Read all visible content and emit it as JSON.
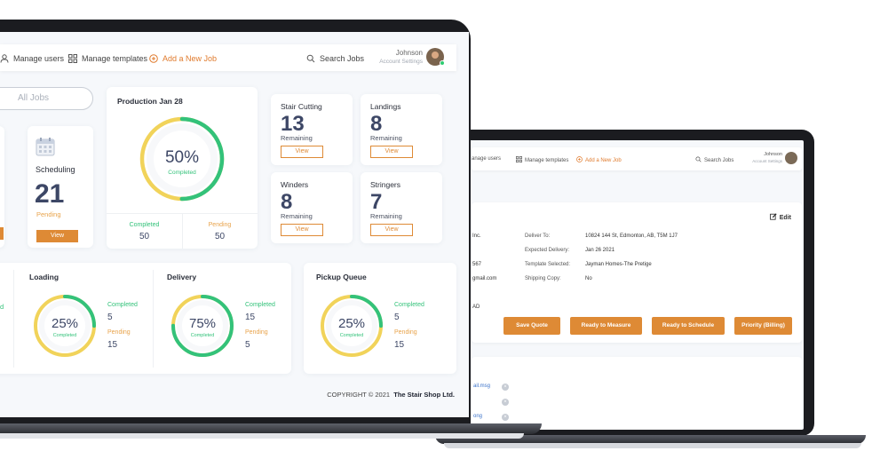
{
  "front": {
    "nav": {
      "manage_users": "Manage users",
      "manage_templates": "Manage templates",
      "add_job": "Add a New Job",
      "search": "Search Jobs",
      "user_name": "Johnson",
      "account_settings": "Account Settings"
    },
    "all_jobs": "All Jobs",
    "scheduling": {
      "title": "Scheduling",
      "count": "21",
      "status": "Pending",
      "view": "View"
    },
    "production": {
      "title": "Production Jan 28",
      "percent": "50%",
      "percent_value": 0.5,
      "percent_label": "Completed",
      "completed_label": "Completed",
      "completed_value": "50",
      "pending_label": "Pending",
      "pending_value": "50"
    },
    "tiles": [
      {
        "title": "Stair Cutting",
        "count": "13",
        "label": "Remaining",
        "view": "View"
      },
      {
        "title": "Landings",
        "count": "8",
        "label": "Remaining",
        "view": "View"
      },
      {
        "title": "Winders",
        "count": "8",
        "label": "Remaining",
        "view": "View"
      },
      {
        "title": "Stringers",
        "count": "7",
        "label": "Remaining",
        "view": "View"
      }
    ],
    "stages": [
      {
        "title": "Loading",
        "percent": "25%",
        "percent_value": 0.25,
        "percent_label": "Completed",
        "completed_label": "Completed",
        "completed_value": "5",
        "pending_label": "Pending",
        "pending_value": "15"
      },
      {
        "title": "Delivery",
        "percent": "75%",
        "percent_value": 0.75,
        "percent_label": "Completed",
        "completed_label": "Completed",
        "completed_value": "15",
        "pending_label": "Pending",
        "pending_value": "5"
      },
      {
        "title": "Pickup Queue",
        "percent": "25%",
        "percent_value": 0.25,
        "percent_label": "Completed",
        "completed_label": "Completed",
        "completed_value": "5",
        "pending_label": "Pending",
        "pending_value": "15"
      }
    ],
    "left_cut_label": "d",
    "copyright": "COPYRIGHT © 2021",
    "company": "The Stair Shop Ltd."
  },
  "back": {
    "nav": {
      "manage_users": "anage users",
      "manage_templates": "Manage templates",
      "add_job": "Add a New Job",
      "search": "Search Jobs",
      "user_name": "Johnson",
      "account_settings": "Account Settings"
    },
    "edit": "Edit",
    "left_frags": [
      "Inc.",
      "567",
      "gmail.com",
      "AD"
    ],
    "fields": [
      {
        "label": "Deliver To:",
        "value": "10824 144 St, Edmonton, AB, T5M 1J7"
      },
      {
        "label": "Expected Delivery:",
        "value": "Jan 26 2021"
      },
      {
        "label": "Template Selected:",
        "value": "Jayman Homes-The Pretige"
      },
      {
        "label": "Shipping Copy:",
        "value": "No"
      }
    ],
    "buttons": [
      "Save Quote",
      "Ready to Measure",
      "Ready to Schedule",
      "Priority (Billing)"
    ],
    "files": [
      "ail.msg",
      "",
      "ong"
    ]
  },
  "colors": {
    "accent_orange": "#de8a35",
    "green": "#33c27a",
    "ring_yellow": "#f1d35a",
    "navy": "#3d4766"
  }
}
